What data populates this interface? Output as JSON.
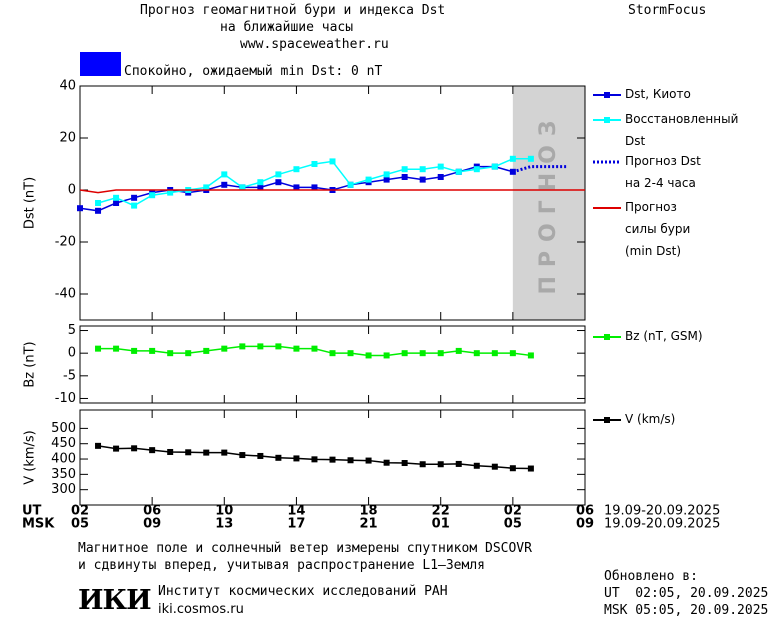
{
  "header": {
    "title": "Прогноз геомагнитной бури и индекса Dst",
    "subtitle": "на ближайшие часы",
    "url": "www.spaceweather.ru",
    "brand": "StormFocus"
  },
  "status": {
    "color": "#0000ff",
    "text": "Спокойно, ожидаемый min Dst: 0 nT"
  },
  "chart_data": [
    {
      "type": "line",
      "ylabel": "Dst (nT)",
      "xlim": [
        0,
        28
      ],
      "ylim": [
        -50,
        40
      ],
      "yticks": [
        40,
        20,
        0,
        -20,
        -40
      ],
      "shade": {
        "x": [
          24,
          28
        ],
        "color": "#d3d3d3",
        "label": "ПРОГНОЗ"
      },
      "series": [
        {
          "name": "Dst, Киото",
          "color": "#0000dd",
          "marker": true,
          "x": [
            0,
            1,
            2,
            3,
            4,
            5,
            6,
            7,
            8,
            9,
            10,
            11,
            12,
            13,
            14,
            15,
            16,
            17,
            18,
            19,
            20,
            21,
            22,
            23,
            24
          ],
          "values": [
            -7,
            -8,
            -5,
            -3,
            -1,
            0,
            -1,
            0,
            2,
            1,
            1,
            3,
            1,
            1,
            0,
            2,
            3,
            4,
            5,
            4,
            5,
            7,
            9,
            9,
            7
          ]
        },
        {
          "name": "Восстановленный\nDst",
          "color": "#00ffff",
          "marker": true,
          "x": [
            1,
            2,
            3,
            4,
            5,
            6,
            7,
            8,
            9,
            10,
            11,
            12,
            13,
            14,
            15,
            16,
            17,
            18,
            19,
            20,
            21,
            22,
            23,
            24,
            25
          ],
          "values": [
            -5,
            -3,
            -6,
            -2,
            -1,
            0,
            1,
            6,
            1,
            3,
            6,
            8,
            10,
            11,
            2,
            4,
            6,
            8,
            8,
            9,
            7,
            8,
            9,
            12,
            12
          ]
        },
        {
          "name": "Прогноз Dst\nна 2-4 часа",
          "color": "#0000dd",
          "marker": false,
          "dash": "dotted",
          "x": [
            24,
            25,
            26,
            27
          ],
          "values": [
            7,
            9,
            9,
            9
          ]
        },
        {
          "name": "Прогноз\nсилы бури\n(min Dst)",
          "color": "#dd0000",
          "marker": false,
          "x": [
            0,
            1,
            2,
            28
          ],
          "values": [
            0,
            -1,
            0,
            0
          ]
        }
      ]
    },
    {
      "type": "line",
      "ylabel": "Bz (nT)",
      "xlim": [
        0,
        28
      ],
      "ylim": [
        -11,
        6
      ],
      "yticks": [
        5,
        0,
        -5,
        -10
      ],
      "series": [
        {
          "name": "Bz (nT, GSM)",
          "color": "#00ee00",
          "marker": true,
          "x": [
            1,
            2,
            3,
            4,
            5,
            6,
            7,
            8,
            9,
            10,
            11,
            12,
            13,
            14,
            15,
            16,
            17,
            18,
            19,
            20,
            21,
            22,
            23,
            24,
            25
          ],
          "values": [
            1,
            1,
            0.5,
            0.5,
            0,
            0,
            0.5,
            1,
            1.5,
            1.5,
            1.5,
            1,
            1,
            0,
            0,
            -0.5,
            -0.5,
            0,
            0,
            0,
            0.5,
            0,
            0,
            0,
            -0.5
          ]
        }
      ]
    },
    {
      "type": "line",
      "ylabel": "V (km/s)",
      "xlim": [
        0,
        28
      ],
      "ylim": [
        250,
        560
      ],
      "yticks": [
        500,
        450,
        400,
        350,
        300
      ],
      "xlabel_ut": "UT",
      "xlabel_msk": "MSK",
      "date_range_ut": "19.09-20.09.2025",
      "date_range_msk": "19.09-20.09.2025",
      "xticks": [
        {
          "value": 0,
          "label": "02"
        },
        {
          "value": 4,
          "label": "06"
        },
        {
          "value": 8,
          "label": "10"
        },
        {
          "value": 12,
          "label": "14"
        },
        {
          "value": 16,
          "label": "18"
        },
        {
          "value": 20,
          "label": "22"
        },
        {
          "value": 24,
          "label": "02"
        },
        {
          "value": 28,
          "label": "06"
        }
      ],
      "xticks_msk": [
        {
          "value": 0,
          "label": "05"
        },
        {
          "value": 4,
          "label": "09"
        },
        {
          "value": 8,
          "label": "13"
        },
        {
          "value": 12,
          "label": "17"
        },
        {
          "value": 16,
          "label": "21"
        },
        {
          "value": 20,
          "label": "01"
        },
        {
          "value": 24,
          "label": "05"
        },
        {
          "value": 28,
          "label": "09"
        }
      ],
      "series": [
        {
          "name": "V (km/s)",
          "color": "#000000",
          "marker": true,
          "x": [
            1,
            2,
            3,
            4,
            5,
            6,
            7,
            8,
            9,
            10,
            11,
            12,
            13,
            14,
            15,
            16,
            17,
            18,
            19,
            20,
            21,
            22,
            23,
            24,
            25
          ],
          "values": [
            443,
            434,
            435,
            429,
            423,
            422,
            421,
            421,
            413,
            410,
            404,
            402,
            399,
            398,
            396,
            395,
            388,
            387,
            383,
            383,
            384,
            378,
            375,
            370,
            369
          ]
        }
      ]
    }
  ],
  "footer": {
    "note_line1": "Магнитное поле и солнечный ветер измерены спутником DSCOVR",
    "note_line2": "и сдвинуты вперед, учитывая распространение L1–Земля",
    "logo": "ИКИ",
    "institute": "Институт космических исследований РАН",
    "site": "iki.cosmos.ru",
    "updated": "Обновлено в:",
    "updated_ut": "UT  02:05, 20.09.2025",
    "updated_msk": "MSK 05:05, 20.09.2025"
  }
}
